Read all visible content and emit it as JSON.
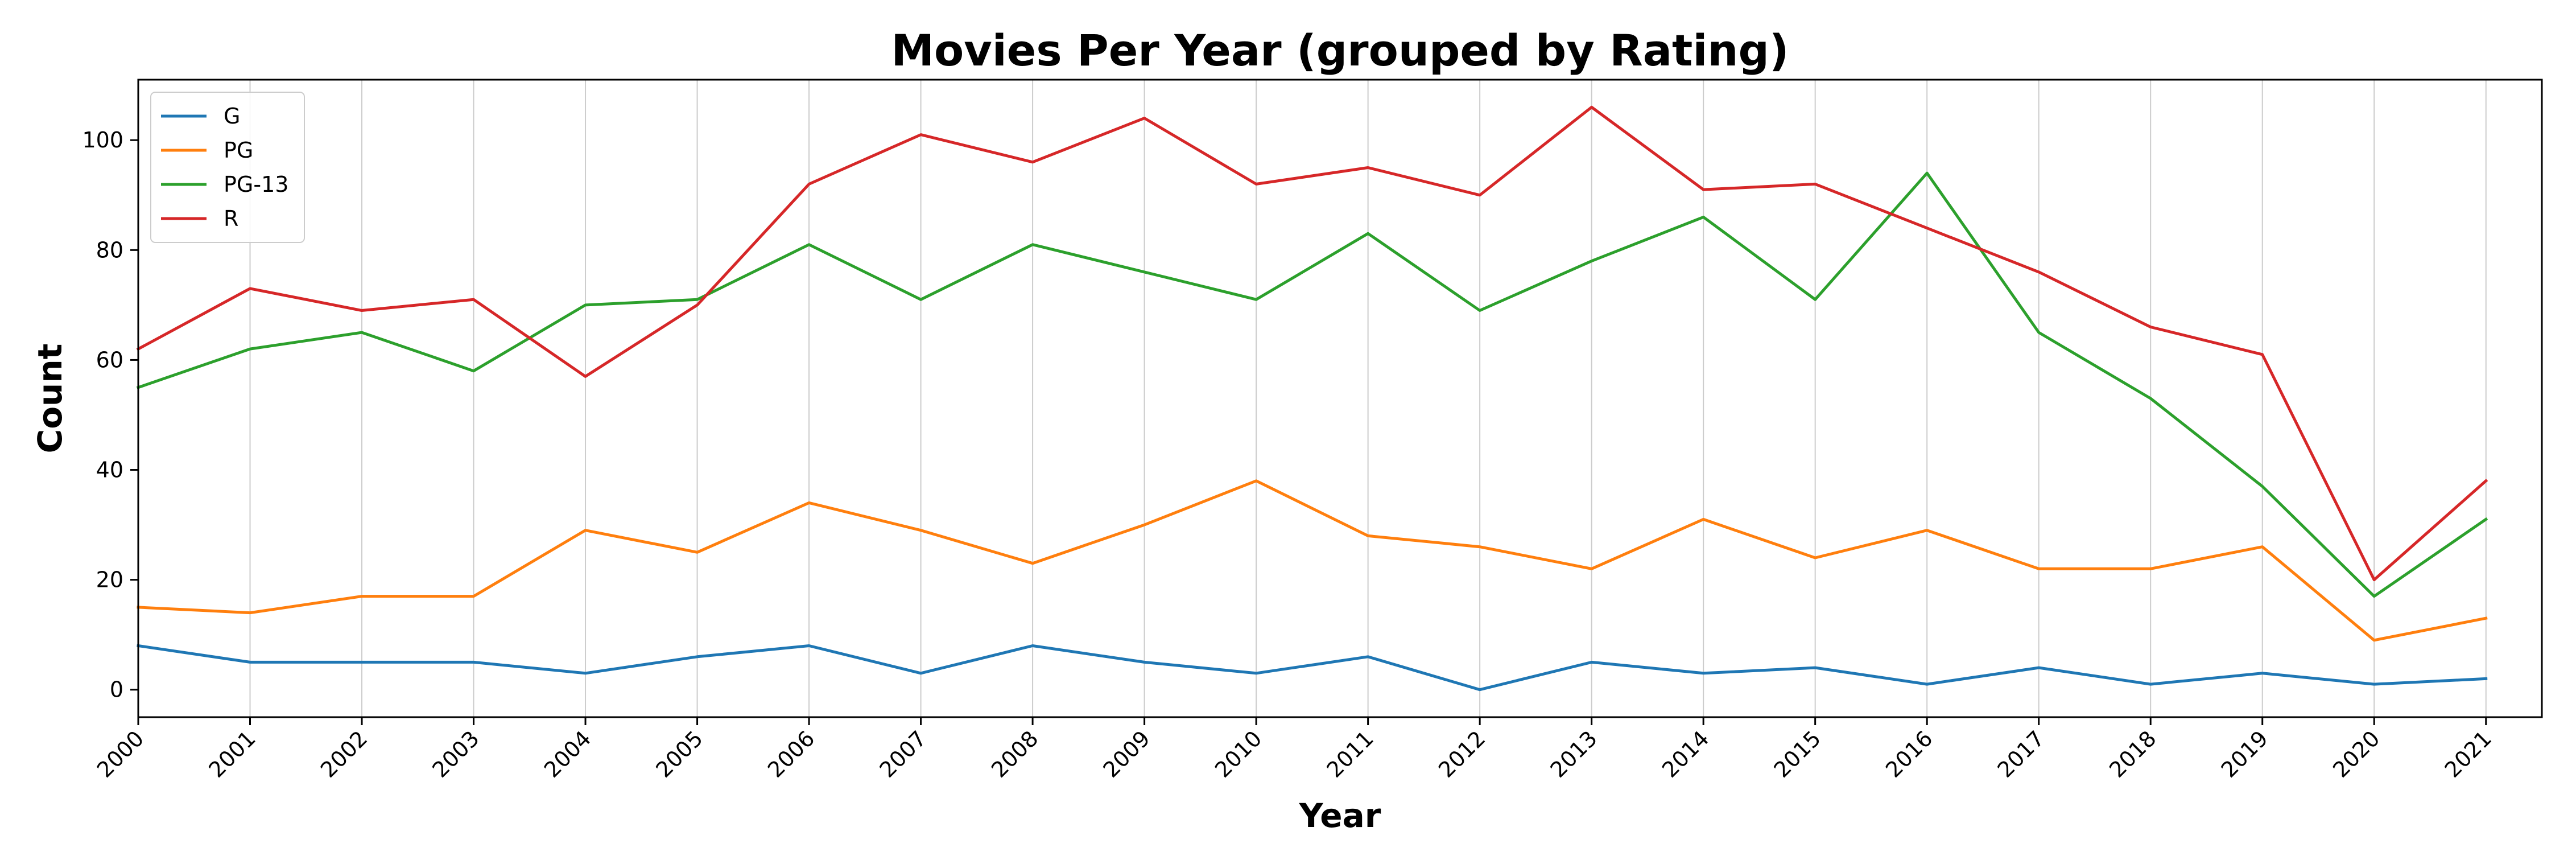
{
  "chart_data": {
    "type": "line",
    "title": "Movies Per Year (grouped by Rating)",
    "xlabel": "Year",
    "ylabel": "Count",
    "x": [
      2000,
      2001,
      2002,
      2003,
      2004,
      2005,
      2006,
      2007,
      2008,
      2009,
      2010,
      2011,
      2012,
      2013,
      2014,
      2015,
      2016,
      2017,
      2018,
      2019,
      2020,
      2021
    ],
    "xlim": [
      2000,
      2021.5
    ],
    "ylim": [
      -5,
      111
    ],
    "yticks": [
      0,
      20,
      40,
      60,
      80,
      100
    ],
    "grid": "vertical",
    "legend": "top-left",
    "series": [
      {
        "name": "G",
        "color": "#1f77b4",
        "values": [
          8,
          5,
          5,
          5,
          3,
          6,
          8,
          3,
          8,
          5,
          3,
          6,
          0,
          5,
          3,
          4,
          1,
          4,
          1,
          3,
          1,
          2
        ]
      },
      {
        "name": "PG",
        "color": "#ff7f0e",
        "values": [
          15,
          14,
          17,
          17,
          29,
          25,
          34,
          29,
          23,
          30,
          38,
          28,
          26,
          22,
          31,
          24,
          29,
          22,
          22,
          26,
          9,
          13
        ]
      },
      {
        "name": "PG-13",
        "color": "#2ca02c",
        "values": [
          55,
          62,
          65,
          58,
          70,
          71,
          81,
          71,
          81,
          76,
          71,
          83,
          69,
          78,
          86,
          71,
          94,
          65,
          53,
          37,
          17,
          31
        ]
      },
      {
        "name": "R",
        "color": "#d62728",
        "values": [
          62,
          73,
          69,
          71,
          57,
          70,
          92,
          101,
          96,
          104,
          92,
          95,
          90,
          106,
          91,
          92,
          84,
          76,
          66,
          61,
          20,
          38
        ]
      }
    ]
  }
}
